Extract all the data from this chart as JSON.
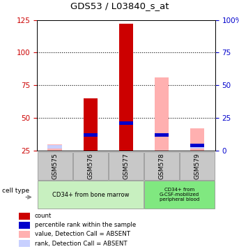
{
  "title": "GDS53 / L03840_s_at",
  "samples": [
    "GSM575",
    "GSM576",
    "GSM577",
    "GSM578",
    "GSM579"
  ],
  "red_bars": [
    null,
    65,
    122,
    null,
    null
  ],
  "pink_bars": [
    30,
    null,
    null,
    81,
    42
  ],
  "blue_bars": [
    null,
    37,
    46,
    37,
    29
  ],
  "light_blue_bars": [
    28,
    null,
    null,
    null,
    28
  ],
  "ylim_left": [
    25,
    125
  ],
  "ylim_right": [
    0,
    100
  ],
  "yticks_left": [
    25,
    50,
    75,
    100,
    125
  ],
  "yticks_right": [
    0,
    25,
    50,
    75,
    100
  ],
  "ytick_labels_right": [
    "0",
    "25",
    "50",
    "75",
    "100%"
  ],
  "left_axis_color": "#cc0000",
  "right_axis_color": "#0000cc",
  "bar_width": 0.4,
  "baseline": 25,
  "grid_lines": [
    50,
    75,
    100
  ],
  "group1_label": "CD34+ from bone marrow",
  "group2_label": "CD34+ from\nG-CSF-mobilized\nperipheral blood",
  "group1_color": "#c8f0c0",
  "group2_color": "#80e880",
  "sample_box_color": "#c8c8c8",
  "legend_items": [
    {
      "label": "count",
      "color": "#cc0000"
    },
    {
      "label": "percentile rank within the sample",
      "color": "#0000cc"
    },
    {
      "label": "value, Detection Call = ABSENT",
      "color": "#ffb0b0"
    },
    {
      "label": "rank, Detection Call = ABSENT",
      "color": "#c8d0ff"
    }
  ]
}
